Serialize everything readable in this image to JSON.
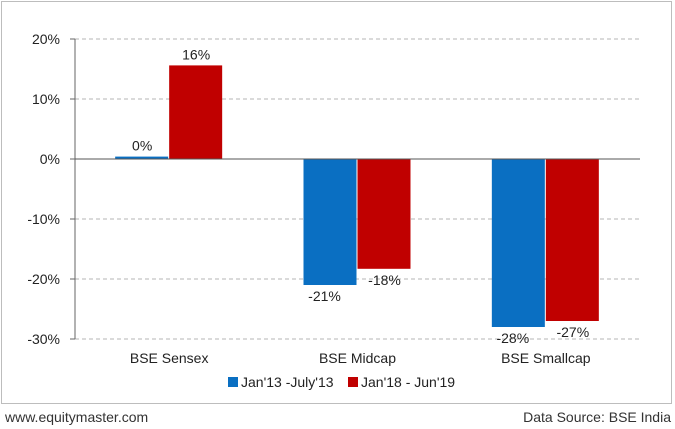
{
  "chart_data": {
    "type": "bar",
    "categories": [
      "BSE Sensex",
      "BSE Midcap",
      "BSE Smallcap"
    ],
    "series": [
      {
        "name": "Jan'13 -July'13",
        "values": [
          0.4,
          -21,
          -28
        ],
        "labels": [
          "0%",
          "-21%",
          "-28%"
        ],
        "color": "#0a6fc2"
      },
      {
        "name": "Jan'18 - Jun'19",
        "values": [
          15.6,
          -18.3,
          -27
        ],
        "labels": [
          "16%",
          "-18%",
          "-27%"
        ],
        "color": "#c00000"
      }
    ],
    "ylim": [
      -30,
      20
    ],
    "yticks": [
      20,
      10,
      0,
      -10,
      -20,
      -30
    ],
    "ytick_labels": [
      "20%",
      "10%",
      "0%",
      "-10%",
      "-20%",
      "-30%"
    ],
    "grid": true,
    "legend_position": "bottom"
  },
  "footer": {
    "left": "www.equitymaster.com",
    "right": "Data Source: BSE India"
  }
}
